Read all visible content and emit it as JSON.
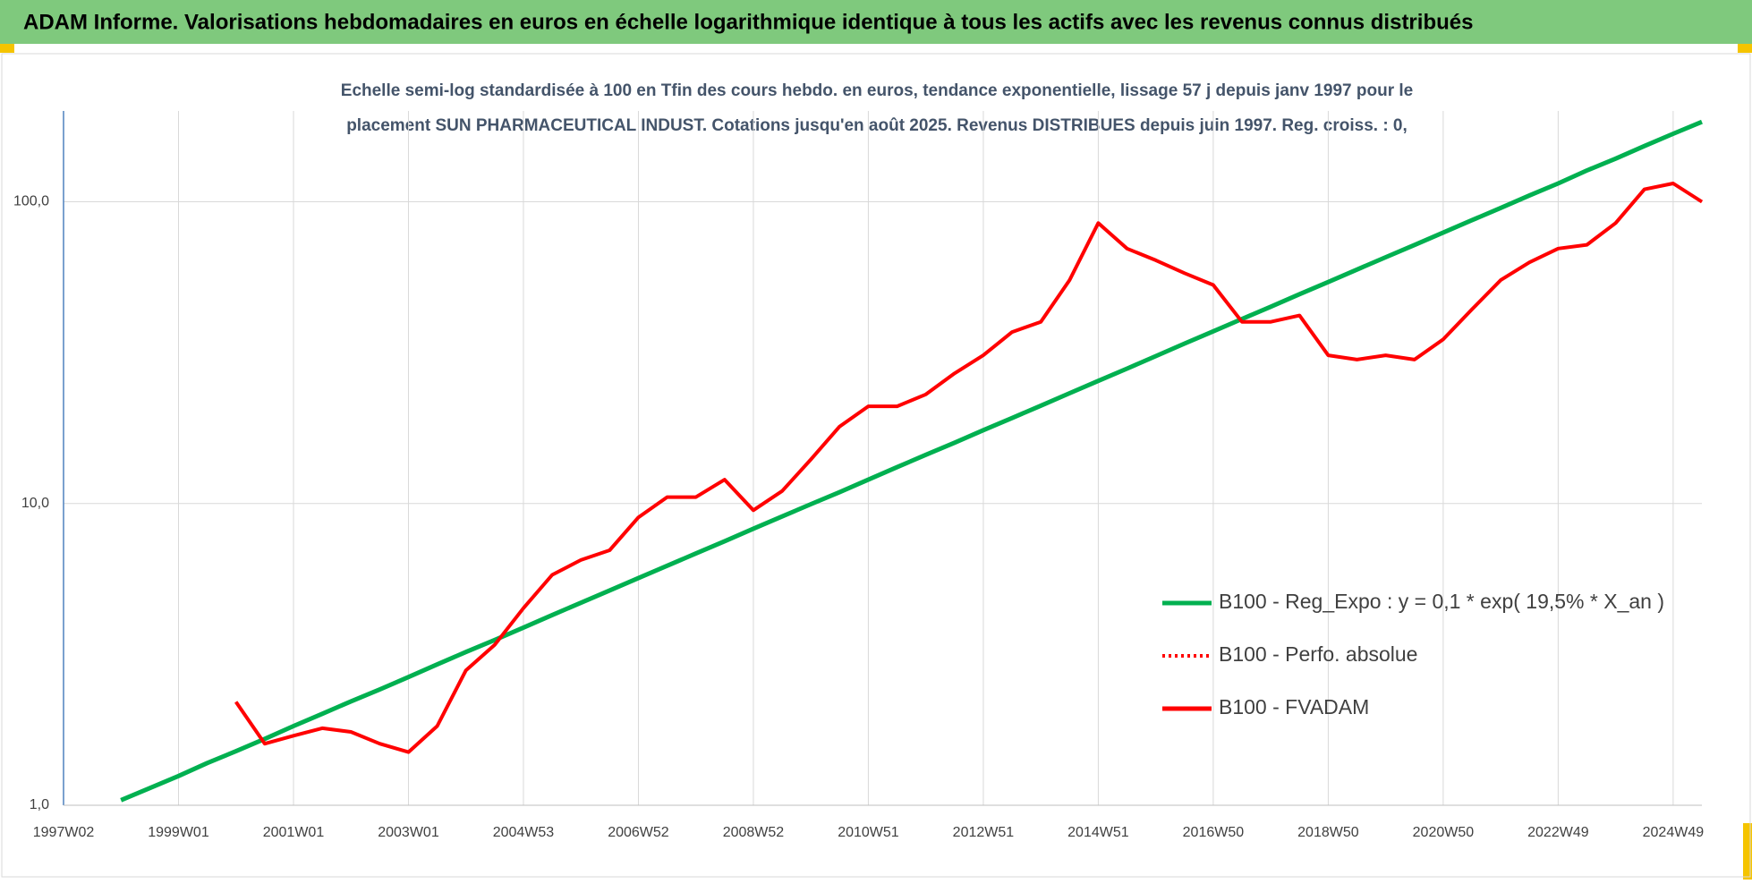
{
  "chart_data": {
    "type": "line",
    "title": "ADAM Informe. Valorisations hebdomadaires en euros en échelle logarithmique identique à tous les actifs avec les revenus connus distribués",
    "subtitle": [
      "Echelle semi-log standardisée à 100 en Tfin des cours hebdo. en euros, tendance exponentielle, lissage 57 j depuis janv 1997 pour le",
      "placement SUN PHARMACEUTICAL INDUST. Cotations jusqu'en août 2025. Revenus DISTRIBUES depuis juin 1997. Reg. croiss. : 0,"
    ],
    "categories": [
      "1997W02",
      null,
      null,
      null,
      "1999W01",
      null,
      null,
      null,
      "2001W01",
      null,
      null,
      null,
      "2003W01",
      null,
      null,
      null,
      "2004W53",
      null,
      null,
      null,
      "2006W52",
      null,
      null,
      null,
      "2008W52",
      null,
      null,
      null,
      "2010W51",
      null,
      null,
      null,
      "2012W51",
      null,
      null,
      null,
      "2014W51",
      null,
      null,
      null,
      "2016W50",
      null,
      null,
      null,
      "2018W50",
      null,
      null,
      null,
      "2020W50",
      null,
      null,
      null,
      "2022W49",
      null,
      null,
      null,
      "2024W49",
      null
    ],
    "log": true,
    "ylim": [
      1,
      200
    ],
    "yticks": [
      {
        "value": 1,
        "label": "1,0"
      },
      {
        "value": 10,
        "label": "10,0"
      },
      {
        "value": 100,
        "label": "100,0"
      }
    ],
    "grid": true,
    "legend": "right",
    "series": [
      {
        "name": "B100 - Reg_Expo : y = 0,1 * exp( 19,5% *  X_an )",
        "color": "#00b050",
        "dash": false,
        "values": [
          null,
          null,
          1.04,
          1.14,
          1.25,
          1.38,
          1.51,
          1.66,
          1.83,
          2.01,
          2.21,
          2.42,
          2.66,
          2.93,
          3.22,
          3.53,
          3.88,
          4.27,
          4.69,
          5.15,
          5.66,
          6.22,
          6.83,
          7.5,
          8.25,
          9.06,
          9.95,
          10.9,
          12.0,
          13.2,
          14.5,
          15.9,
          17.5,
          19.2,
          21.1,
          23.2,
          25.5,
          28.0,
          30.8,
          33.9,
          37.2,
          40.9,
          44.9,
          49.4,
          54.2,
          59.6,
          65.5,
          71.9,
          79.1,
          86.9,
          95.4,
          105,
          115,
          127,
          139,
          153,
          168,
          184
        ]
      },
      {
        "name": "B100 - Perfo. absolue",
        "color": "#ff0000",
        "dash": true,
        "values": [
          null,
          null,
          null,
          null,
          null,
          null,
          2.2,
          1.6,
          1.7,
          1.8,
          1.75,
          1.6,
          1.5,
          1.83,
          2.8,
          3.4,
          4.5,
          5.8,
          6.5,
          7.0,
          9.0,
          10.5,
          10.5,
          12,
          9.5,
          11,
          14,
          18,
          21,
          21,
          23,
          27,
          31,
          37,
          40,
          55,
          85,
          70,
          64,
          58,
          53,
          40,
          40,
          42,
          31,
          30,
          31,
          30,
          35,
          44,
          55,
          63,
          70,
          72,
          85,
          110,
          115,
          100
        ]
      },
      {
        "name": "B100 - FVADAM",
        "color": "#ff0000",
        "dash": false,
        "values": [
          null,
          null,
          null,
          null,
          null,
          null,
          2.2,
          1.6,
          1.7,
          1.8,
          1.75,
          1.6,
          1.5,
          1.83,
          2.8,
          3.4,
          4.5,
          5.8,
          6.5,
          7.0,
          9.0,
          10.5,
          10.5,
          12,
          9.5,
          11,
          14,
          18,
          21,
          21,
          23,
          27,
          31,
          37,
          40,
          55,
          85,
          70,
          64,
          58,
          53,
          40,
          40,
          42,
          31,
          30,
          31,
          30,
          35,
          44,
          55,
          63,
          70,
          72,
          85,
          110,
          115,
          100
        ]
      }
    ]
  }
}
